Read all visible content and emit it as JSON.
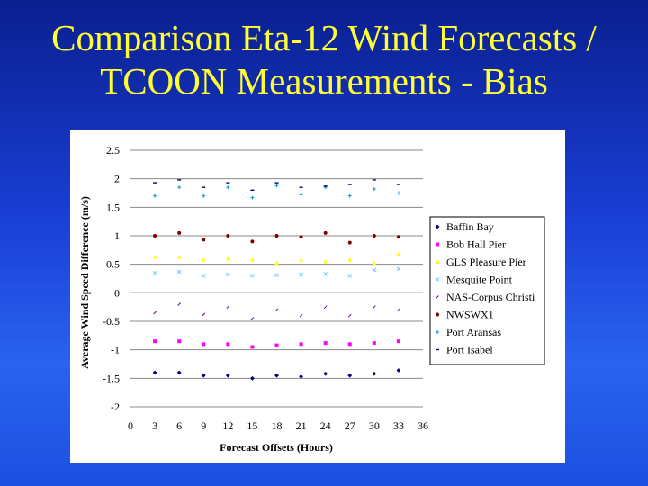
{
  "slide": {
    "title_line1": "Comparison Eta-12 Wind Forecasts /",
    "title_line2": "TCOON Measurements - Bias"
  },
  "colors": {
    "background_top": "#0a1f8f",
    "background_bottom": "#2a63f0",
    "title": "#ffff33",
    "chart_background": "#ffffff"
  },
  "chart_data": {
    "type": "scatter",
    "title": "",
    "xlabel": "Forecast Offsets (Hours)",
    "ylabel": "Average Wind Speed Difference (m/s)",
    "xlim": [
      0,
      36
    ],
    "ylim": [
      -2,
      2.5
    ],
    "xticks": [
      "0",
      "3",
      "6",
      "9",
      "12",
      "15",
      "18",
      "21",
      "24",
      "27",
      "30",
      "33",
      "36"
    ],
    "yticks": [
      "2.5",
      "2",
      "1.5",
      "1",
      "0.5",
      "0",
      "-0.5",
      "-1",
      "-1.5",
      "-2"
    ],
    "ytick_values": [
      2.5,
      2,
      1.5,
      1,
      0.5,
      0,
      -0.5,
      -1,
      -1.5,
      -2
    ],
    "grid": "horizontal",
    "legend_position": "right",
    "x": [
      3,
      6,
      9,
      12,
      15,
      18,
      21,
      24,
      27,
      30,
      33
    ],
    "series": [
      {
        "name": "Baffin Bay",
        "color": "#000080",
        "marker": "diamond",
        "values": [
          -1.4,
          -1.4,
          -1.45,
          -1.45,
          -1.5,
          -1.45,
          -1.47,
          -1.42,
          -1.45,
          -1.42,
          -1.36
        ]
      },
      {
        "name": "Bob Hall Pier",
        "color": "#ff00ff",
        "marker": "square",
        "values": [
          -0.85,
          -0.85,
          -0.9,
          -0.9,
          -0.95,
          -0.92,
          -0.9,
          -0.88,
          -0.9,
          -0.88,
          -0.85
        ]
      },
      {
        "name": "GLS Pleasure Pier",
        "color": "#ffff00",
        "marker": "triangle",
        "values": [
          0.63,
          0.63,
          0.58,
          0.6,
          0.58,
          0.52,
          0.58,
          0.55,
          0.58,
          0.52,
          0.68
        ]
      },
      {
        "name": "Mesquite Point",
        "color": "#66ccff",
        "marker": "x",
        "values": [
          0.35,
          0.37,
          0.3,
          0.32,
          0.3,
          0.31,
          0.32,
          0.33,
          0.3,
          0.4,
          0.42
        ]
      },
      {
        "name": "NAS-Corpus Christi",
        "color": "#660099",
        "marker": "star",
        "values": [
          -0.35,
          -0.2,
          -0.38,
          -0.25,
          -0.45,
          -0.3,
          -0.4,
          -0.25,
          -0.4,
          -0.25,
          -0.3
        ]
      },
      {
        "name": "NWSWX1",
        "color": "#800000",
        "marker": "circle",
        "values": [
          1.0,
          1.05,
          0.93,
          1.0,
          0.9,
          1.0,
          0.98,
          1.05,
          0.88,
          1.0,
          0.98
        ]
      },
      {
        "name": "Port Aransas",
        "color": "#0099cc",
        "marker": "plus",
        "values": [
          1.7,
          1.85,
          1.7,
          1.85,
          1.67,
          1.88,
          1.72,
          1.85,
          1.7,
          1.82,
          1.75
        ]
      },
      {
        "name": "Port Isabel",
        "color": "#000066",
        "marker": "dash",
        "values": [
          1.93,
          1.98,
          1.85,
          1.93,
          1.8,
          1.93,
          1.85,
          1.87,
          1.9,
          1.98,
          1.9
        ]
      }
    ]
  }
}
